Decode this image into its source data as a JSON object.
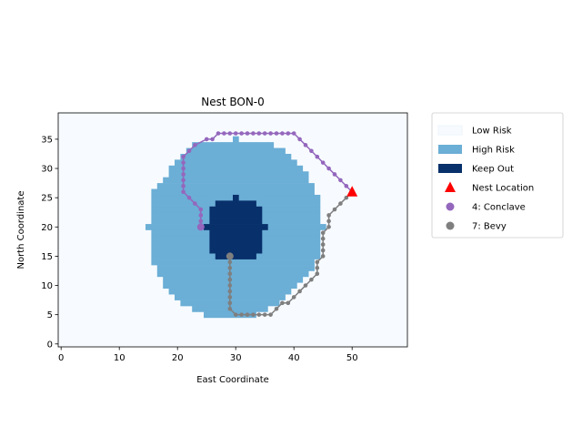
{
  "chart_data": {
    "type": "heatmap",
    "title": "Nest BON-0",
    "xlabel": "East Coordinate",
    "ylabel": "North Coordinate",
    "xlim": [
      -0.5,
      59.5
    ],
    "ylim": [
      -0.5,
      39.5
    ],
    "xticks": [
      0,
      10,
      20,
      30,
      40,
      50
    ],
    "yticks": [
      0,
      5,
      10,
      15,
      20,
      25,
      30,
      35
    ],
    "grid": false,
    "legend_position": "outside-right",
    "legend": [
      {
        "label": "Low Risk",
        "kind": "patch",
        "color": "#f7fbff"
      },
      {
        "label": "High Risk",
        "kind": "patch",
        "color": "#6baed6"
      },
      {
        "label": "Keep Out",
        "kind": "patch",
        "color": "#08306b"
      },
      {
        "label": "Nest Location",
        "kind": "triangle",
        "color": "#ff0000"
      },
      {
        "label": "4: Conclave",
        "kind": "dot",
        "color": "#9467bd"
      },
      {
        "label": "7: Bevy",
        "kind": "dot",
        "color": "#7f7f7f"
      }
    ],
    "colors": {
      "low": "#f7fbff",
      "high": "#6baed6",
      "keep_out": "#08306b",
      "nest": "#ff0000",
      "conclave": "#9467bd",
      "bevy": "#7f7f7f"
    },
    "risk_zones": {
      "high_rows": [
        {
          "y": 5,
          "x0": 25,
          "x1": 33
        },
        {
          "y": 6,
          "x0": 23,
          "x1": 35
        },
        {
          "y": 7,
          "x0": 21,
          "x1": 37
        },
        {
          "y": 8,
          "x0": 20,
          "x1": 38
        },
        {
          "y": 9,
          "x0": 19,
          "x1": 39
        },
        {
          "y": 10,
          "x0": 18,
          "x1": 40
        },
        {
          "y": 11,
          "x0": 18,
          "x1": 41
        },
        {
          "y": 12,
          "x0": 17,
          "x1": 42
        },
        {
          "y": 13,
          "x0": 17,
          "x1": 43
        },
        {
          "y": 14,
          "x0": 16,
          "x1": 43
        },
        {
          "y": 15,
          "x0": 16,
          "x1": 44
        },
        {
          "y": 16,
          "x0": 16,
          "x1": 44
        },
        {
          "y": 17,
          "x0": 16,
          "x1": 44
        },
        {
          "y": 18,
          "x0": 16,
          "x1": 44
        },
        {
          "y": 19,
          "x0": 16,
          "x1": 44
        },
        {
          "y": 20,
          "x0": 15,
          "x1": 45
        },
        {
          "y": 21,
          "x0": 16,
          "x1": 44
        },
        {
          "y": 22,
          "x0": 16,
          "x1": 44
        },
        {
          "y": 23,
          "x0": 16,
          "x1": 44
        },
        {
          "y": 24,
          "x0": 16,
          "x1": 44
        },
        {
          "y": 25,
          "x0": 16,
          "x1": 44
        },
        {
          "y": 26,
          "x0": 16,
          "x1": 43
        },
        {
          "y": 27,
          "x0": 17,
          "x1": 43
        },
        {
          "y": 28,
          "x0": 18,
          "x1": 42
        },
        {
          "y": 29,
          "x0": 19,
          "x1": 42
        },
        {
          "y": 30,
          "x0": 19,
          "x1": 41
        },
        {
          "y": 31,
          "x0": 20,
          "x1": 40
        },
        {
          "y": 32,
          "x0": 21,
          "x1": 39
        },
        {
          "y": 33,
          "x0": 22,
          "x1": 38
        },
        {
          "y": 34,
          "x0": 23,
          "x1": 36
        },
        {
          "y": 35,
          "x0": 30,
          "x1": 30
        }
      ],
      "keep_out_rows": [
        {
          "y": 15,
          "x0": 27,
          "x1": 33
        },
        {
          "y": 16,
          "x0": 26,
          "x1": 34
        },
        {
          "y": 17,
          "x0": 26,
          "x1": 34
        },
        {
          "y": 18,
          "x0": 26,
          "x1": 34
        },
        {
          "y": 19,
          "x0": 26,
          "x1": 34
        },
        {
          "y": 20,
          "x0": 25,
          "x1": 35
        },
        {
          "y": 21,
          "x0": 26,
          "x1": 34
        },
        {
          "y": 22,
          "x0": 26,
          "x1": 34
        },
        {
          "y": 23,
          "x0": 26,
          "x1": 34
        },
        {
          "y": 24,
          "x0": 27,
          "x1": 33
        },
        {
          "y": 25,
          "x0": 30,
          "x1": 30
        }
      ]
    },
    "nest_location": {
      "x": 50,
      "y": 26
    },
    "series": [
      {
        "name": "4: Conclave",
        "color": "#9467bd",
        "points": [
          [
            24,
            20
          ],
          [
            24,
            21
          ],
          [
            24,
            22
          ],
          [
            24,
            23
          ],
          [
            23,
            24
          ],
          [
            22,
            25
          ],
          [
            21,
            26
          ],
          [
            21,
            27
          ],
          [
            21,
            28
          ],
          [
            21,
            29
          ],
          [
            21,
            30
          ],
          [
            21,
            31
          ],
          [
            21,
            32
          ],
          [
            22,
            33
          ],
          [
            23,
            34
          ],
          [
            25,
            35
          ],
          [
            26,
            35
          ],
          [
            27,
            36
          ],
          [
            28,
            36
          ],
          [
            29,
            36
          ],
          [
            30,
            36
          ],
          [
            31,
            36
          ],
          [
            32,
            36
          ],
          [
            33,
            36
          ],
          [
            34,
            36
          ],
          [
            35,
            36
          ],
          [
            36,
            36
          ],
          [
            37,
            36
          ],
          [
            38,
            36
          ],
          [
            39,
            36
          ],
          [
            40,
            36
          ],
          [
            41,
            35
          ],
          [
            42,
            34
          ],
          [
            43,
            33
          ],
          [
            44,
            32
          ],
          [
            45,
            31
          ],
          [
            46,
            30
          ],
          [
            47,
            29
          ],
          [
            48,
            28
          ],
          [
            49,
            27
          ],
          [
            50,
            26
          ]
        ]
      },
      {
        "name": "7: Bevy",
        "color": "#7f7f7f",
        "points": [
          [
            29,
            15
          ],
          [
            29,
            14
          ],
          [
            29,
            13
          ],
          [
            29,
            12
          ],
          [
            29,
            11
          ],
          [
            29,
            10
          ],
          [
            29,
            9
          ],
          [
            29,
            8
          ],
          [
            29,
            7
          ],
          [
            29,
            6
          ],
          [
            30,
            5
          ],
          [
            31,
            5
          ],
          [
            32,
            5
          ],
          [
            33,
            5
          ],
          [
            34,
            5
          ],
          [
            35,
            5
          ],
          [
            36,
            5
          ],
          [
            37,
            6
          ],
          [
            38,
            7
          ],
          [
            39,
            7
          ],
          [
            40,
            8
          ],
          [
            41,
            9
          ],
          [
            42,
            10
          ],
          [
            43,
            11
          ],
          [
            44,
            12
          ],
          [
            44,
            13
          ],
          [
            44,
            14
          ],
          [
            45,
            15
          ],
          [
            45,
            16
          ],
          [
            45,
            17
          ],
          [
            45,
            18
          ],
          [
            45,
            19
          ],
          [
            46,
            20
          ],
          [
            46,
            21
          ],
          [
            46,
            22
          ],
          [
            47,
            23
          ],
          [
            48,
            24
          ],
          [
            49,
            25
          ],
          [
            50,
            26
          ]
        ]
      }
    ]
  }
}
